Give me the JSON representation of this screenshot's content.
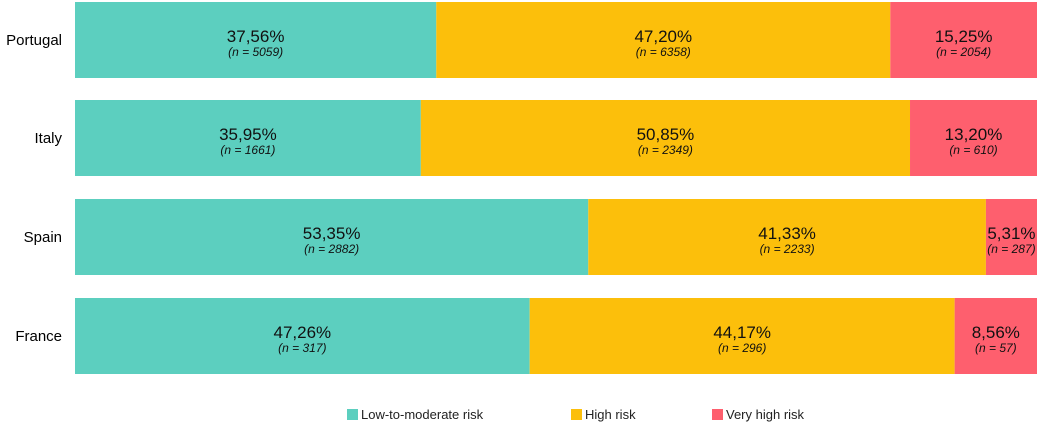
{
  "chart_data": {
    "type": "bar",
    "orientation": "horizontal",
    "stacked": true,
    "normalized_percent": true,
    "categories": [
      "Portugal",
      "Italy",
      "Spain",
      "France"
    ],
    "series": [
      {
        "name": "Low-to-moderate risk",
        "color": "#5ccfbf",
        "values": [
          37.56,
          35.95,
          53.35,
          47.26
        ],
        "labels": [
          "37,56%",
          "35,95%",
          "53,35%",
          "47,26%"
        ],
        "n_labels": [
          "(n = 5059)",
          "(n = 1661)",
          "(n = 2882)",
          "(n = 317)"
        ]
      },
      {
        "name": "High risk",
        "color": "#fcbf0b",
        "values": [
          47.2,
          50.85,
          41.33,
          44.17
        ],
        "labels": [
          "47,20%",
          "50,85%",
          "41,33%",
          "44,17%"
        ],
        "n_labels": [
          "(n = 6358)",
          "(n = 2349)",
          "(n = 2233)",
          "(n = 296)"
        ]
      },
      {
        "name": "Very high risk",
        "color": "#fe5f6e",
        "values": [
          15.25,
          13.2,
          5.31,
          8.56
        ],
        "labels": [
          "15,25%",
          "13,20%",
          "5,31%",
          "8,56%"
        ],
        "n_labels": [
          "(n = 2054)",
          "(n = 610)",
          "(n = 287)",
          "(n = 57)"
        ]
      }
    ],
    "xlim": [
      0,
      100
    ],
    "grid": false,
    "legend": "bottom"
  }
}
